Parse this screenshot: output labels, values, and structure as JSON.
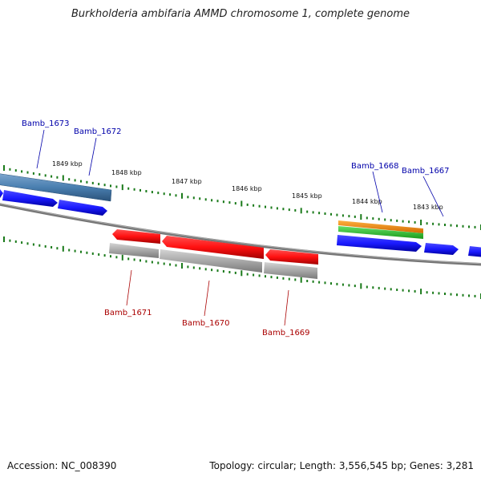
{
  "title": "Burkholderia ambifaria AMMD chromosome 1, complete genome",
  "footer": {
    "accession": "Accession: NC_008390",
    "topology": "Topology: circular; Length: 3,556,545 bp; Genes: 3,281"
  },
  "scale_labels": [
    "1849 kbp",
    "1848 kbp",
    "1847 kbp",
    "1846 kbp",
    "1845 kbp",
    "1844 kbp",
    "1843 kbp"
  ],
  "genes": [
    {
      "name": "Bamb_1673",
      "strand": "forward",
      "color": "#0000cc"
    },
    {
      "name": "Bamb_1672",
      "strand": "forward",
      "color": "#0000cc"
    },
    {
      "name": "Bamb_1671",
      "strand": "reverse",
      "color": "#cc0000"
    },
    {
      "name": "Bamb_1670",
      "strand": "reverse",
      "color": "#cc0000"
    },
    {
      "name": "Bamb_1669",
      "strand": "reverse",
      "color": "#cc0000"
    },
    {
      "name": "Bamb_1668",
      "strand": "forward",
      "color": "#0000cc"
    },
    {
      "name": "Bamb_1667",
      "strand": "forward",
      "color": "#0000cc"
    }
  ],
  "colors": {
    "forward_gene": "#1a1aff",
    "reverse_gene": "#ff1a1a",
    "tick": "#1a7a1a",
    "backbone": "#777777",
    "steelblue_band": "#4a7fb0",
    "grey_band": "#a8a8a8",
    "orange_band": "#ff8c00",
    "green_band": "#33cc33"
  }
}
